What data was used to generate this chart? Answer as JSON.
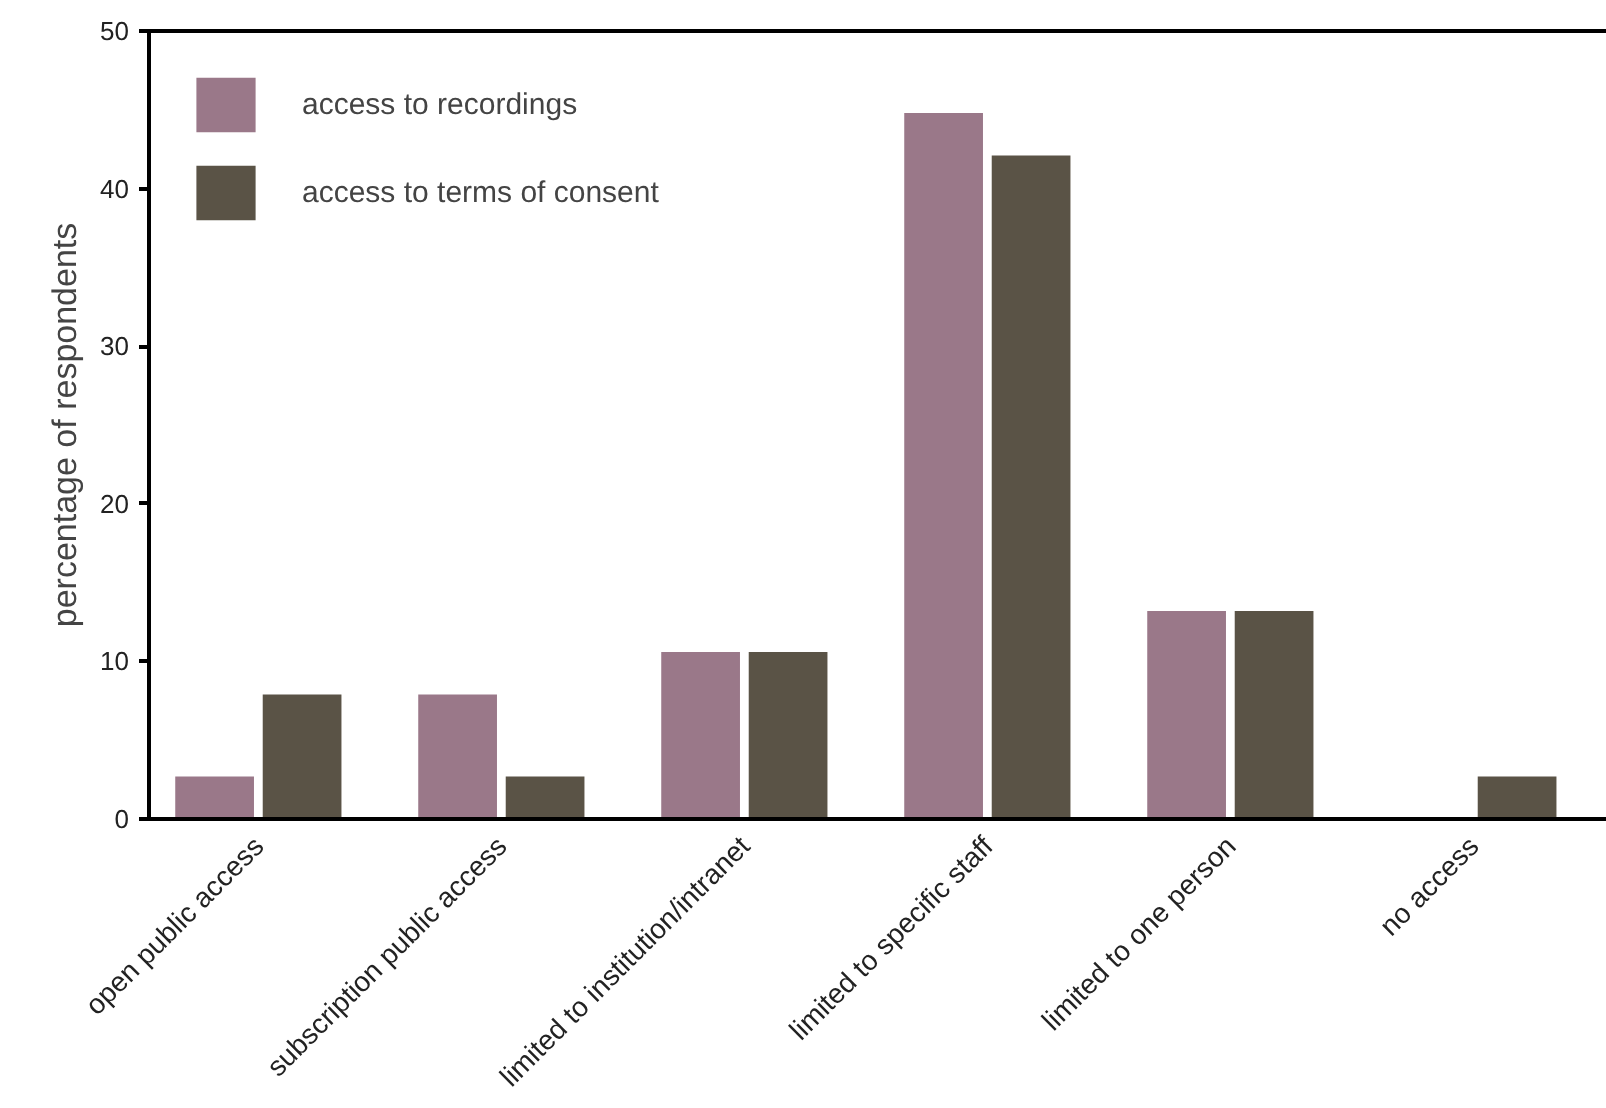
{
  "chart_data": {
    "type": "bar",
    "ylabel": "percentage of respondents",
    "categories": [
      "open public access",
      "subscription public access",
      "limited to institution/intranet",
      "limited to specific staff",
      "limited to one person",
      "no access"
    ],
    "series": [
      {
        "name": "access to recordings",
        "color": "#9a7889",
        "values": [
          2.7,
          7.9,
          10.6,
          44.8,
          13.2,
          0
        ]
      },
      {
        "name": "access to terms of consent",
        "color": "#5a5346",
        "values": [
          7.9,
          2.7,
          10.6,
          42.1,
          13.2,
          2.7
        ]
      }
    ],
    "ylim": [
      0,
      50
    ],
    "yticks": [
      0,
      10,
      20,
      30,
      40,
      50
    ],
    "grid": false,
    "legend": "top left"
  }
}
